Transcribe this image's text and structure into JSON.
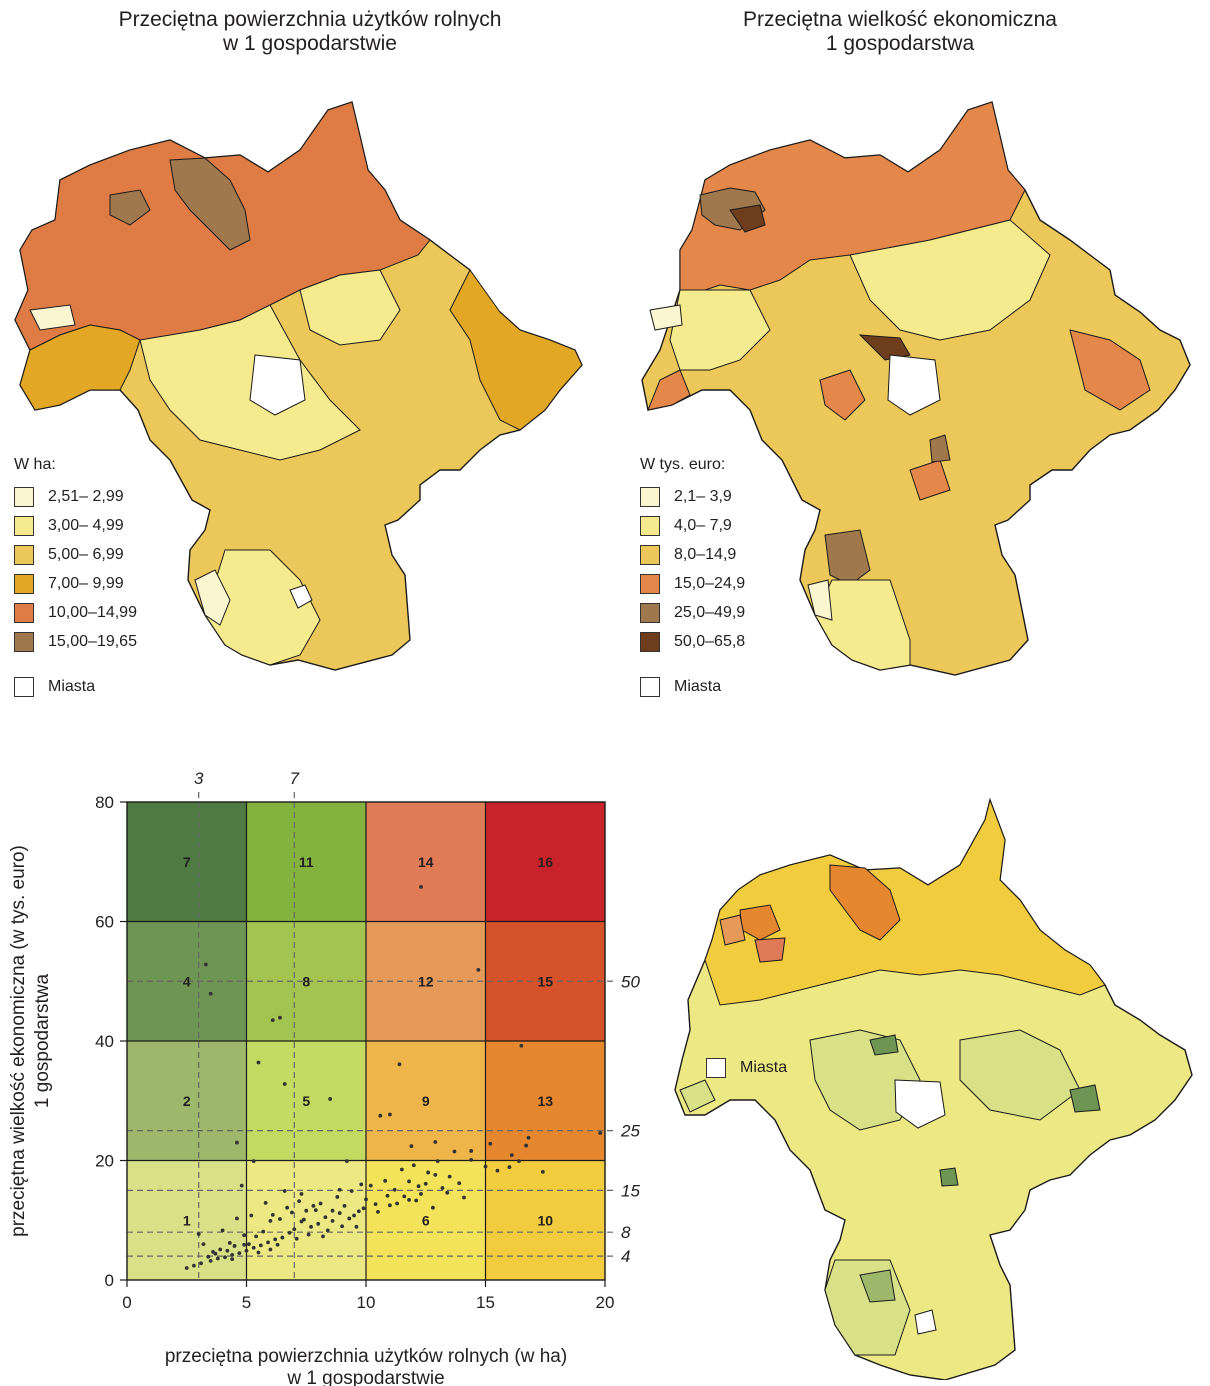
{
  "map_area": {
    "title_line1": "Przeciętna powierzchnia użytków rolnych",
    "title_line2": "w 1 gospodarstwie",
    "legend_title": "W ha:",
    "classes": [
      {
        "label": "2,51– 2,99",
        "color": "#fbf6d0"
      },
      {
        "label": "3,00– 4,99",
        "color": "#f6ea8e"
      },
      {
        "label": "5,00– 6,99",
        "color": "#ecc85a"
      },
      {
        "label": "7,00– 9,99",
        "color": "#e2a724"
      },
      {
        "label": "10,00–14,99",
        "color": "#df7c45"
      },
      {
        "label": "15,00–19,65",
        "color": "#a0784d"
      }
    ],
    "cities_label": "Miasta"
  },
  "map_econ": {
    "title_line1": "Przeciętna wielkość ekonomiczna",
    "title_line2": "1 gospodarstwa",
    "legend_title": "W tys. euro:",
    "classes": [
      {
        "label": "2,1– 3,9",
        "color": "#fbf6d0"
      },
      {
        "label": "4,0– 7,9",
        "color": "#f6ea8e"
      },
      {
        "label": "8,0–14,9",
        "color": "#ecc85a"
      },
      {
        "label": "15,0–24,9",
        "color": "#e4874a"
      },
      {
        "label": "25,0–49,9",
        "color": "#a0784d"
      },
      {
        "label": "50,0–65,8",
        "color": "#6e3d1b"
      }
    ],
    "cities_label": "Miasta"
  },
  "map_bivariate": {
    "cities_label": "Miasta"
  },
  "chart_data": {
    "type": "scatter",
    "xlabel_line1": "przeciętna powierzchnia użytków rolnych (w ha)",
    "xlabel_line2": "w 1 gospodarstwie",
    "ylabel_line1": "przeciętna wielkość ekonomiczna (w tys. euro)",
    "ylabel_line2": "1 gospodarstwa",
    "xlim": [
      0,
      20
    ],
    "ylim": [
      0,
      80
    ],
    "x_ticks": [
      0,
      5,
      10,
      15,
      20
    ],
    "y_ticks": [
      0,
      20,
      40,
      60,
      80
    ],
    "x_breaks": [
      5,
      10,
      15
    ],
    "y_breaks": [
      20,
      40,
      60
    ],
    "dashed_x": [
      {
        "value": 3,
        "label": "3"
      },
      {
        "value": 7,
        "label": "7"
      }
    ],
    "dashed_y": [
      {
        "value": 50,
        "label": "50"
      },
      {
        "value": 25,
        "label": "25"
      },
      {
        "value": 15,
        "label": "15"
      },
      {
        "value": 8,
        "label": "8"
      },
      {
        "value": 4,
        "label": "4"
      }
    ],
    "cells": [
      {
        "id": "1",
        "col": 0,
        "row": 0,
        "color": "#d8e088"
      },
      {
        "id": "3",
        "col": 1,
        "row": 0,
        "color": "#ece985"
      },
      {
        "id": "6",
        "col": 2,
        "row": 0,
        "color": "#f2e35a"
      },
      {
        "id": "10",
        "col": 3,
        "row": 0,
        "color": "#f1cc3e"
      },
      {
        "id": "2",
        "col": 0,
        "row": 1,
        "color": "#9db86b"
      },
      {
        "id": "5",
        "col": 1,
        "row": 1,
        "color": "#c5da63"
      },
      {
        "id": "9",
        "col": 2,
        "row": 1,
        "color": "#edb54a"
      },
      {
        "id": "13",
        "col": 3,
        "row": 1,
        "color": "#e5872e"
      },
      {
        "id": "4",
        "col": 0,
        "row": 2,
        "color": "#6e9553"
      },
      {
        "id": "8",
        "col": 1,
        "row": 2,
        "color": "#a4c452"
      },
      {
        "id": "12",
        "col": 2,
        "row": 2,
        "color": "#e59a5a"
      },
      {
        "id": "15",
        "col": 3,
        "row": 2,
        "color": "#d6522a"
      },
      {
        "id": "7",
        "col": 0,
        "row": 3,
        "color": "#4f7a42"
      },
      {
        "id": "11",
        "col": 1,
        "row": 3,
        "color": "#84b23f"
      },
      {
        "id": "14",
        "col": 2,
        "row": 3,
        "color": "#e07b58"
      },
      {
        "id": "16",
        "col": 3,
        "row": 3,
        "color": "#c8232a"
      }
    ],
    "cell_labels": [
      {
        "text": "1",
        "x": 2.5,
        "y": 10
      },
      {
        "text": "6",
        "x": 12.5,
        "y": 10
      },
      {
        "text": "10",
        "x": 17.5,
        "y": 10
      },
      {
        "text": "2",
        "x": 2.5,
        "y": 30
      },
      {
        "text": "5",
        "x": 7.5,
        "y": 30
      },
      {
        "text": "9",
        "x": 12.5,
        "y": 30
      },
      {
        "text": "13",
        "x": 17.5,
        "y": 30
      },
      {
        "text": "4",
        "x": 2.5,
        "y": 50
      },
      {
        "text": "8",
        "x": 7.5,
        "y": 50
      },
      {
        "text": "12",
        "x": 12.5,
        "y": 50
      },
      {
        "text": "15",
        "x": 17.5,
        "y": 50
      },
      {
        "text": "7",
        "x": 2.5,
        "y": 70
      },
      {
        "text": "11",
        "x": 7.5,
        "y": 70
      },
      {
        "text": "14",
        "x": 12.5,
        "y": 70
      },
      {
        "text": "16",
        "x": 17.5,
        "y": 70
      }
    ],
    "points": [
      [
        3.3,
        52.8
      ],
      [
        3.5,
        47.9
      ],
      [
        6.1,
        43.5
      ],
      [
        6.4,
        43.9
      ],
      [
        5.5,
        36.4
      ],
      [
        6.6,
        32.8
      ],
      [
        8.5,
        30.3
      ],
      [
        4.6,
        23.0
      ],
      [
        12.3,
        65.8
      ],
      [
        14.7,
        51.9
      ],
      [
        16.5,
        39.2
      ],
      [
        11.4,
        36.1
      ],
      [
        10.6,
        27.5
      ],
      [
        11.0,
        27.7
      ],
      [
        11.9,
        22.4
      ],
      [
        12.9,
        23.1
      ],
      [
        13.7,
        21.5
      ],
      [
        14.4,
        21.6
      ],
      [
        15.2,
        22.8
      ],
      [
        16.1,
        20.9
      ],
      [
        16.7,
        22.5
      ],
      [
        16.8,
        23.8
      ],
      [
        19.8,
        24.6
      ],
      [
        17.4,
        18.1
      ],
      [
        16.4,
        19.9
      ],
      [
        15.5,
        18.3
      ],
      [
        13.9,
        16.2
      ],
      [
        14.1,
        13.8
      ],
      [
        12.3,
        14.4
      ],
      [
        11.3,
        12.8
      ],
      [
        11.8,
        16.5
      ],
      [
        12.9,
        17.6
      ],
      [
        10.9,
        14.1
      ],
      [
        9.9,
        12.0
      ],
      [
        9.5,
        10.8
      ],
      [
        9.2,
        19.9
      ],
      [
        8.9,
        11.2
      ],
      [
        8.6,
        9.9
      ],
      [
        8.3,
        10.5
      ],
      [
        8.0,
        9.4
      ],
      [
        7.7,
        8.9
      ],
      [
        7.3,
        9.8
      ],
      [
        7.0,
        8.5
      ],
      [
        6.8,
        7.9
      ],
      [
        6.5,
        7.1
      ],
      [
        6.2,
        6.8
      ],
      [
        5.9,
        6.3
      ],
      [
        5.6,
        5.8
      ],
      [
        5.3,
        5.4
      ],
      [
        5.0,
        4.9
      ],
      [
        4.7,
        4.5
      ],
      [
        4.4,
        4.2
      ],
      [
        4.1,
        3.8
      ],
      [
        3.8,
        3.6
      ],
      [
        3.5,
        3.2
      ],
      [
        3.1,
        2.8
      ],
      [
        2.8,
        2.4
      ],
      [
        2.5,
        2.0
      ],
      [
        4.9,
        7.5
      ],
      [
        5.2,
        10.8
      ],
      [
        4.6,
        10.3
      ],
      [
        4.3,
        6.2
      ],
      [
        3.9,
        5.1
      ],
      [
        3.6,
        4.7
      ],
      [
        4.8,
        15.8
      ],
      [
        5.8,
        12.9
      ],
      [
        6.6,
        14.9
      ],
      [
        7.2,
        13.2
      ],
      [
        7.5,
        11.6
      ],
      [
        8.1,
        12.8
      ],
      [
        8.8,
        13.9
      ],
      [
        9.4,
        14.9
      ],
      [
        10.2,
        15.8
      ],
      [
        10.5,
        11.4
      ],
      [
        11.2,
        15.1
      ],
      [
        11.6,
        14.0
      ],
      [
        12.1,
        13.3
      ],
      [
        12.5,
        16.1
      ],
      [
        13.2,
        15.4
      ],
      [
        13.5,
        17.3
      ],
      [
        12.8,
        12.1
      ],
      [
        6.0,
        9.9
      ],
      [
        6.4,
        10.2
      ],
      [
        6.9,
        11.3
      ],
      [
        7.4,
        10.1
      ],
      [
        7.9,
        11.7
      ],
      [
        8.4,
        8.3
      ],
      [
        9.0,
        9.0
      ],
      [
        9.7,
        11.5
      ],
      [
        5.4,
        7.3
      ],
      [
        5.1,
        6.0
      ],
      [
        4.5,
        5.7
      ],
      [
        4.2,
        4.9
      ],
      [
        3.4,
        3.9
      ],
      [
        5.7,
        8.1
      ],
      [
        6.3,
        5.9
      ],
      [
        7.1,
        6.9
      ],
      [
        7.6,
        7.6
      ],
      [
        8.2,
        7.3
      ],
      [
        9.1,
        12.4
      ],
      [
        9.6,
        8.9
      ],
      [
        10.0,
        13.5
      ],
      [
        10.8,
        16.6
      ],
      [
        11.0,
        12.5
      ],
      [
        11.5,
        18.5
      ],
      [
        12.0,
        19.2
      ],
      [
        12.6,
        18.0
      ],
      [
        13.0,
        19.9
      ],
      [
        5.3,
        19.9
      ],
      [
        6.7,
        12.1
      ],
      [
        3.0,
        7.7
      ],
      [
        3.2,
        6.0
      ],
      [
        4.0,
        8.3
      ],
      [
        6.1,
        10.9
      ],
      [
        7.8,
        12.4
      ],
      [
        8.6,
        11.6
      ],
      [
        9.3,
        10.3
      ],
      [
        10.4,
        12.7
      ],
      [
        11.8,
        13.4
      ],
      [
        12.2,
        15.7
      ],
      [
        13.4,
        14.6
      ],
      [
        14.4,
        20.1
      ],
      [
        15.0,
        19.0
      ],
      [
        16.0,
        18.9
      ],
      [
        4.4,
        3.5
      ],
      [
        5.5,
        4.6
      ],
      [
        6.0,
        5.1
      ],
      [
        4.9,
        5.9
      ],
      [
        3.7,
        4.4
      ],
      [
        7.3,
        14.4
      ],
      [
        8.9,
        15.1
      ],
      [
        9.8,
        16.0
      ]
    ]
  }
}
